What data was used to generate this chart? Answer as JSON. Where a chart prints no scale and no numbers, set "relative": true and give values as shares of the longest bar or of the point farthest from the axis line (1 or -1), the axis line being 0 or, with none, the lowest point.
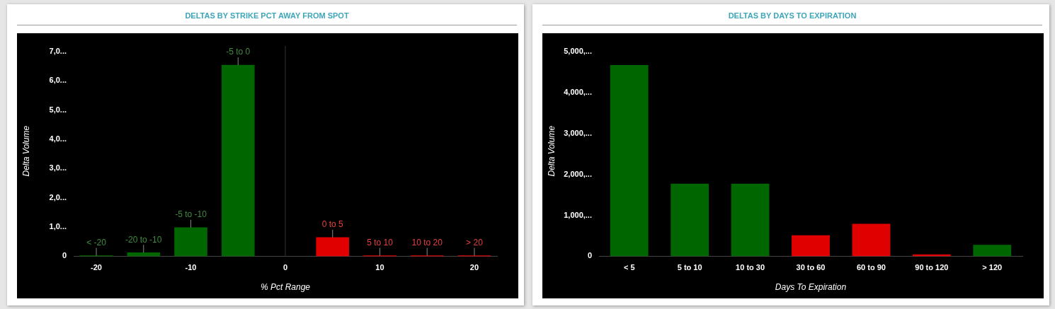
{
  "chart_data": [
    {
      "type": "bar",
      "title": "DELTAS BY STRIKE PCT AWAY FROM SPOT",
      "xlabel": "% Pct Range",
      "ylabel": "Delta Volume",
      "relative": true,
      "x": [
        -20,
        -15,
        -10,
        -5,
        5,
        10,
        15,
        20
      ],
      "values": [
        0.003,
        0.019,
        0.15,
        1,
        0.098,
        0.003,
        0.003,
        0.003
      ],
      "colors": [
        "#006600",
        "#006600",
        "#006600",
        "#006600",
        "#e00000",
        "#e00000",
        "#e00000",
        "#e00000"
      ],
      "xlim": [
        -22.4,
        22.4
      ],
      "xticks": [
        -20,
        -10,
        0,
        10,
        20
      ],
      "ref_lines": [
        {
          "axis": "x",
          "value": 0,
          "color": "#333333"
        }
      ],
      "annotations": [
        "0",
        "1,0...",
        "2,0...",
        "3,0...",
        "4,0...",
        "5,0...",
        "6,0...",
        "7,0...",
        {
          "text": "< -20",
          "x": -20,
          "y": 0.003
        },
        {
          "text": "-20 to -10",
          "x": -15,
          "y": 0.019
        },
        {
          "text": "-5 to -10",
          "x": -10,
          "y": 0.15
        },
        {
          "text": "-5 to 0",
          "x": -5,
          "y": 1
        },
        {
          "text": "0 to 5",
          "x": 5,
          "y": 0.098
        },
        {
          "text": "5 to 10",
          "x": 10,
          "y": 0.003
        },
        {
          "text": "10 to 20",
          "x": 15,
          "y": 0.003
        },
        {
          "text": "> 20",
          "x": 20,
          "y": 0.003
        }
      ]
    },
    {
      "type": "bar",
      "title": "DELTAS BY DAYS TO EXPIRATION",
      "xlabel": "Days To Expiration",
      "ylabel": "Delta Volume",
      "relative": true,
      "categories": [
        "< 5",
        "5 to 10",
        "10 to 30",
        "30 to 60",
        "60 to 90",
        "90 to 120",
        "> 120"
      ],
      "values": [
        1,
        0.38,
        0.38,
        0.11,
        0.17,
        0.01,
        0.06
      ],
      "colors": [
        "#006600",
        "#006600",
        "#006600",
        "#e00000",
        "#e00000",
        "#e00000",
        "#006600"
      ],
      "annotations": [
        "0",
        "1,000,...",
        "2,000,...",
        "3,000,...",
        "4,000,...",
        "5,000,..."
      ]
    }
  ]
}
